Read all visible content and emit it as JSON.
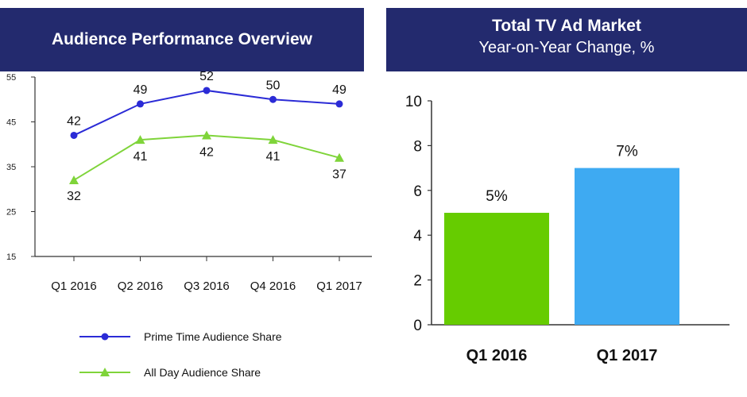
{
  "left_chart": {
    "banner_title": "Audience Performance Overview",
    "chart_data": {
      "type": "line",
      "title": "Audience Performance Overview",
      "categories": [
        "Q1 2016",
        "Q2 2016",
        "Q3 2016",
        "Q4 2016",
        "Q1 2017"
      ],
      "ylim": [
        15,
        55
      ],
      "yticks": [
        15,
        25,
        35,
        45,
        55
      ],
      "series": [
        {
          "name": "Prime Time Audience Share",
          "values": [
            42,
            49,
            52,
            50,
            49
          ],
          "color": "#2b2bd6",
          "marker": "circle",
          "labels": [
            "42",
            "49",
            "52",
            "50",
            "49"
          ]
        },
        {
          "name": "All Day Audience Share",
          "values": [
            32,
            41,
            42,
            41,
            37
          ],
          "color": "#7fd43a",
          "marker": "triangle",
          "labels": [
            "32",
            "41",
            "42",
            "41",
            "37"
          ]
        }
      ]
    }
  },
  "right_chart": {
    "banner_title": "Total TV Ad Market",
    "banner_subtitle": "Year-on-Year Change, %",
    "chart_data": {
      "type": "bar",
      "title": "Total TV Ad Market",
      "subtitle": "Year-on-Year Change, %",
      "categories": [
        "Q1 2016",
        "Q1 2017"
      ],
      "values": [
        5,
        7
      ],
      "labels": [
        "5%",
        "7%"
      ],
      "colors": [
        "#66cc00",
        "#3eaaf2"
      ],
      "ylim": [
        0,
        10
      ],
      "yticks": [
        0,
        2,
        4,
        6,
        8,
        10
      ]
    }
  }
}
